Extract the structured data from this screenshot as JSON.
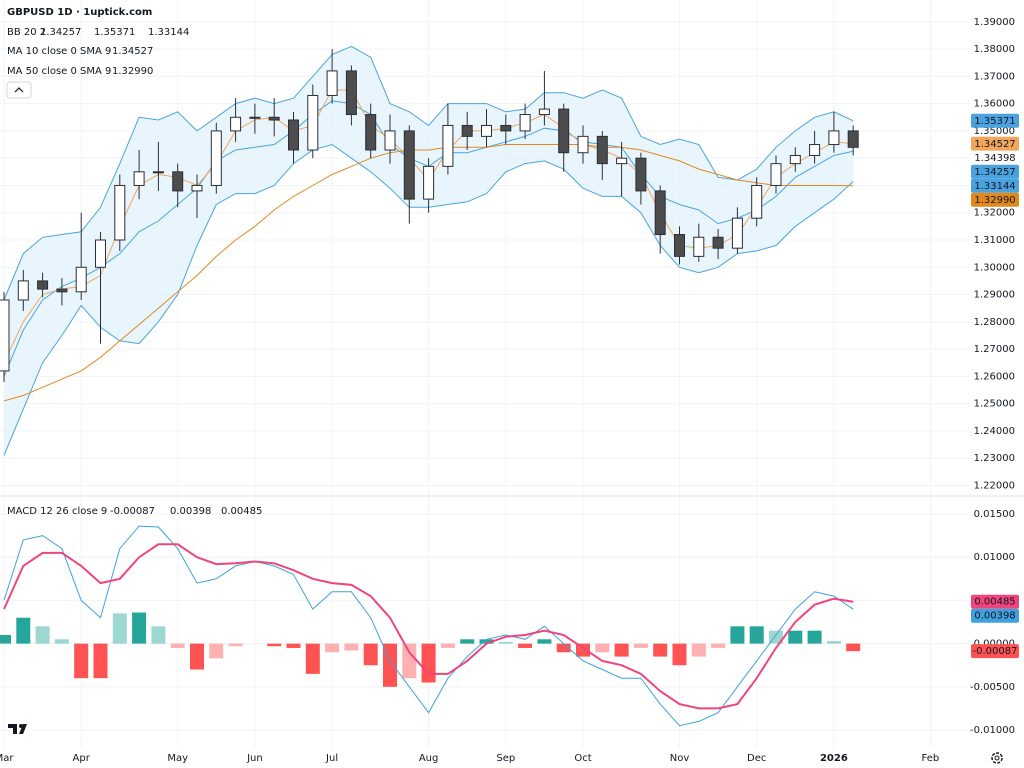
{
  "chart_data": [
    {
      "type": "candlestick",
      "title": "GBPUSD 1D · 1uptick.com",
      "categories": [
        "Mar",
        null,
        null,
        null,
        "Apr",
        null,
        null,
        null,
        null,
        "May",
        null,
        null,
        null,
        "Jun",
        null,
        null,
        null,
        "Jul",
        null,
        null,
        null,
        null,
        "Aug",
        null,
        null,
        null,
        "Sep",
        null,
        null,
        null,
        "Oct",
        null,
        null,
        null,
        null,
        "Nov",
        null,
        null,
        null,
        "Dec",
        null,
        null,
        null,
        "2026",
        null,
        null,
        null,
        null,
        "Feb"
      ],
      "open": [
        1.262,
        1.288,
        1.295,
        1.292,
        1.291,
        1.3,
        1.31,
        1.33,
        1.335,
        1.335,
        1.328,
        1.33,
        1.35,
        1.355,
        1.355,
        1.354,
        1.343,
        1.363,
        1.372,
        1.356,
        1.343,
        1.35,
        1.325,
        1.337,
        1.352,
        1.348,
        1.352,
        1.35,
        1.356,
        1.358,
        1.342,
        1.348,
        1.338,
        1.34,
        1.328,
        1.312,
        1.304,
        1.311,
        1.307,
        1.318,
        1.33,
        1.338,
        1.341,
        1.345,
        1.35,
        null,
        null,
        null,
        null
      ],
      "high": [
        1.291,
        1.299,
        1.298,
        1.296,
        1.32,
        1.313,
        1.334,
        1.343,
        1.346,
        1.338,
        1.334,
        1.353,
        1.362,
        1.36,
        1.362,
        1.357,
        1.367,
        1.38,
        1.374,
        1.36,
        1.356,
        1.352,
        1.34,
        1.36,
        1.357,
        1.358,
        1.356,
        1.36,
        1.372,
        1.36,
        1.352,
        1.35,
        1.346,
        1.342,
        1.33,
        1.315,
        1.316,
        1.314,
        1.322,
        1.333,
        1.341,
        1.344,
        1.35,
        1.357,
        1.352,
        null,
        null,
        null,
        null
      ],
      "low": [
        1.258,
        1.284,
        1.289,
        1.286,
        1.288,
        1.272,
        1.306,
        1.325,
        1.328,
        1.322,
        1.318,
        1.327,
        1.346,
        1.349,
        1.348,
        1.338,
        1.34,
        1.36,
        1.352,
        1.34,
        1.338,
        1.316,
        1.32,
        1.334,
        1.343,
        1.344,
        1.345,
        1.347,
        1.352,
        1.335,
        1.338,
        1.332,
        1.326,
        1.323,
        1.305,
        1.301,
        1.302,
        1.303,
        1.305,
        1.315,
        1.327,
        1.335,
        1.338,
        1.342,
        1.341,
        null,
        null,
        null,
        null
      ],
      "close": [
        1.288,
        1.295,
        1.292,
        1.291,
        1.3,
        1.31,
        1.33,
        1.335,
        1.335,
        1.328,
        1.33,
        1.35,
        1.355,
        1.355,
        1.354,
        1.343,
        1.363,
        1.372,
        1.356,
        1.343,
        1.35,
        1.325,
        1.337,
        1.352,
        1.348,
        1.352,
        1.35,
        1.356,
        1.358,
        1.342,
        1.348,
        1.338,
        1.34,
        1.328,
        1.312,
        1.304,
        1.311,
        1.307,
        1.318,
        1.33,
        1.338,
        1.341,
        1.345,
        1.35,
        1.34398,
        null,
        null,
        null,
        null
      ],
      "close_label": "1.34398",
      "up_color": "#ffffff",
      "down_color": "#4d4d4d",
      "wick_color": "#2a2e39",
      "ylim": [
        1.2165,
        1.398
      ],
      "yticks": [
        {
          "value": 1.22,
          "label": "1.22000"
        },
        {
          "value": 1.23,
          "label": "1.23000"
        },
        {
          "value": 1.24,
          "label": "1.24000"
        },
        {
          "value": 1.25,
          "label": "1.25000"
        },
        {
          "value": 1.26,
          "label": "1.26000"
        },
        {
          "value": 1.27,
          "label": "1.27000"
        },
        {
          "value": 1.28,
          "label": "1.28000"
        },
        {
          "value": 1.29,
          "label": "1.29000"
        },
        {
          "value": 1.3,
          "label": "1.30000"
        },
        {
          "value": 1.31,
          "label": "1.31000"
        },
        {
          "value": 1.32,
          "label": "1.32000"
        },
        {
          "value": 1.33,
          "label": "1.33000"
        },
        {
          "value": 1.34,
          "label": "1.34000"
        },
        {
          "value": 1.35,
          "label": "1.35000"
        },
        {
          "value": 1.36,
          "label": "1.36000"
        },
        {
          "value": 1.37,
          "label": "1.37000"
        },
        {
          "value": 1.38,
          "label": "1.38000"
        },
        {
          "value": 1.39,
          "label": "1.39000"
        }
      ],
      "grid": true,
      "bands": {
        "name": "BB 20 2",
        "color": "#4aa3df",
        "fill": "#e3f2fd",
        "series": [
          {
            "values": [
              1.26,
              1.277,
              1.288,
              1.293,
              1.296,
              1.3,
              1.305,
              1.313,
              1.317,
              1.323,
              1.329,
              1.339,
              1.343,
              1.344,
              1.345,
              1.35,
              1.356,
              1.361,
              1.36,
              1.356,
              1.345,
              1.34,
              1.337,
              1.342,
              1.342,
              1.344,
              1.346,
              1.348,
              1.351,
              1.35,
              1.346,
              1.345,
              1.344,
              1.334,
              1.326,
              1.323,
              1.321,
              1.316,
              1.318,
              1.321,
              1.326,
              1.333,
              1.337,
              1.341,
              1.34257,
              null,
              null,
              null,
              null
            ],
            "legend_label": "1.34257"
          },
          {
            "values": [
              1.288,
              1.305,
              1.311,
              1.312,
              1.313,
              1.322,
              1.338,
              1.355,
              1.354,
              1.357,
              1.35,
              1.355,
              1.36,
              1.362,
              1.36,
              1.362,
              1.37,
              1.378,
              1.381,
              1.377,
              1.36,
              1.357,
              1.352,
              1.36,
              1.36,
              1.36,
              1.357,
              1.358,
              1.364,
              1.364,
              1.362,
              1.365,
              1.362,
              1.348,
              1.345,
              1.347,
              1.345,
              1.333,
              1.332,
              1.336,
              1.344,
              1.35,
              1.355,
              1.357,
              1.35371,
              null,
              null,
              null,
              null
            ],
            "legend_label": "1.35371"
          },
          {
            "values": [
              1.231,
              1.248,
              1.265,
              1.275,
              1.286,
              1.278,
              1.273,
              1.272,
              1.28,
              1.29,
              1.308,
              1.323,
              1.327,
              1.327,
              1.33,
              1.338,
              1.343,
              1.345,
              1.34,
              1.335,
              1.329,
              1.322,
              1.322,
              1.323,
              1.324,
              1.327,
              1.335,
              1.338,
              1.339,
              1.336,
              1.329,
              1.326,
              1.326,
              1.32,
              1.308,
              1.3,
              1.298,
              1.3,
              1.305,
              1.306,
              1.308,
              1.315,
              1.32,
              1.325,
              1.33144,
              null,
              null,
              null,
              null
            ],
            "legend_label": "1.33144"
          }
        ]
      },
      "lines": [
        {
          "name": "MA 10 close 0 SMA 9",
          "color": "#f2a65a",
          "legend_label": "1.34527",
          "values": [
            1.265,
            1.28,
            1.29,
            1.292,
            1.293,
            1.297,
            1.315,
            1.33,
            1.334,
            1.333,
            1.33,
            1.338,
            1.35,
            1.354,
            1.355,
            1.35,
            1.352,
            1.365,
            1.365,
            1.352,
            1.347,
            1.34,
            1.332,
            1.343,
            1.35,
            1.35,
            1.351,
            1.353,
            1.356,
            1.351,
            1.345,
            1.343,
            1.34,
            1.334,
            1.32,
            1.308,
            1.307,
            1.308,
            1.312,
            1.322,
            1.333,
            1.338,
            1.342,
            1.346,
            1.34527,
            null,
            null,
            null,
            null
          ]
        },
        {
          "name": "MA 50 close 0 SMA 9",
          "color": "#e08a1e",
          "legend_label": "1.32990",
          "values": [
            1.251,
            1.253,
            1.256,
            1.259,
            1.262,
            1.267,
            1.273,
            1.279,
            1.285,
            1.291,
            1.297,
            1.304,
            1.31,
            1.315,
            1.321,
            1.326,
            1.33,
            1.334,
            1.337,
            1.34,
            1.342,
            1.343,
            1.343,
            1.344,
            1.344,
            1.344,
            1.345,
            1.345,
            1.345,
            1.345,
            1.345,
            1.344,
            1.344,
            1.343,
            1.341,
            1.339,
            1.336,
            1.334,
            1.332,
            1.331,
            1.33,
            1.33,
            1.33,
            1.33,
            1.3299,
            null,
            null,
            null,
            null
          ]
        }
      ]
    },
    {
      "type": "macd",
      "name": "MACD 12 26 close 9",
      "histogram": {
        "color": "#26a69a",
        "negative_color": "#ff5252",
        "legend_label": "-0.00087",
        "values": [
          0.001,
          0.003,
          0.002,
          0.0005,
          -0.004,
          -0.004,
          0.0035,
          0.0036,
          0.002,
          -0.0005,
          -0.003,
          -0.0017,
          -0.0003,
          0,
          -0.0003,
          -0.0005,
          -0.0035,
          -0.001,
          -0.0008,
          -0.0025,
          -0.005,
          -0.004,
          -0.0045,
          -0.0005,
          0.0005,
          0.0005,
          0.0002,
          -0.0005,
          0.0005,
          -0.001,
          -0.0015,
          -0.001,
          -0.0015,
          -0.0005,
          -0.0015,
          -0.0025,
          -0.0015,
          -0.0005,
          0.002,
          0.002,
          0.0015,
          0.0015,
          0.0015,
          0.0003,
          -0.00087,
          null,
          null,
          null,
          null
        ]
      },
      "macd": {
        "color": "#3fa1e0",
        "legend_label": "0.00398",
        "values": [
          0.005,
          0.012,
          0.0125,
          0.011,
          0.005,
          0.003,
          0.011,
          0.0136,
          0.0135,
          0.011,
          0.007,
          0.0075,
          0.009,
          0.0095,
          0.009,
          0.008,
          0.004,
          0.006,
          0.006,
          0.003,
          -0.002,
          -0.005,
          -0.008,
          -0.004,
          -0.0015,
          0.0005,
          0.001,
          0.0005,
          0.002,
          0,
          -0.002,
          -0.003,
          -0.004,
          -0.004,
          -0.007,
          -0.0095,
          -0.009,
          -0.008,
          -0.005,
          -0.002,
          0.001,
          0.004,
          0.006,
          0.0055,
          0.00398,
          null,
          null,
          null,
          null
        ]
      },
      "signal": {
        "color": "#f0457c",
        "legend_label": "0.00485",
        "values": [
          0.004,
          0.009,
          0.0105,
          0.0105,
          0.009,
          0.007,
          0.0075,
          0.01,
          0.0115,
          0.0115,
          0.01,
          0.0092,
          0.0093,
          0.0095,
          0.0093,
          0.0085,
          0.0075,
          0.007,
          0.0068,
          0.0055,
          0.003,
          -0.001,
          -0.0035,
          -0.0035,
          -0.002,
          0,
          0.0008,
          0.001,
          0.0015,
          0.001,
          -0.0005,
          -0.002,
          -0.0025,
          -0.0035,
          -0.0055,
          -0.007,
          -0.0075,
          -0.0075,
          -0.007,
          -0.004,
          -0.0005,
          0.0025,
          0.0045,
          0.0052,
          0.00485,
          null,
          null,
          null,
          null
        ]
      },
      "ylim": [
        -0.01208,
        0.01697
      ],
      "yticks": [
        {
          "value": -0.01,
          "label": "-0.01000"
        },
        {
          "value": -0.005,
          "label": "-0.00500"
        },
        {
          "value": 0,
          "label": "0.00000"
        },
        {
          "value": 0.005,
          "label": "0.00500"
        },
        {
          "value": 0.01,
          "label": "0.01000"
        },
        {
          "value": 0.015,
          "label": "0.01500"
        }
      ],
      "grid": true
    }
  ]
}
